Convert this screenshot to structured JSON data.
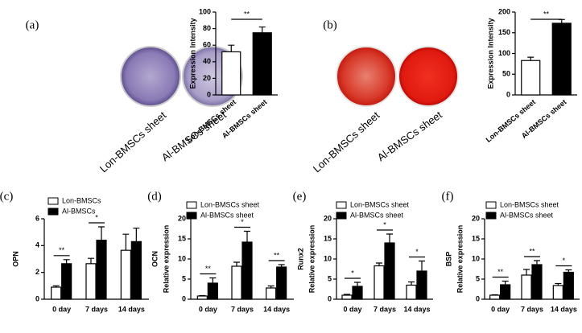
{
  "chart_data": [
    {
      "type": "bar",
      "panel": "(a)",
      "photo_labels": [
        "Lon-BMSCs sheet",
        "Al-BMSCs sheet"
      ],
      "ylabel": "Expression Intensity",
      "categories": [
        "Lon-BMSCs sheet",
        "Al-BMSCs sheet"
      ],
      "values": [
        52,
        75
      ],
      "errors": [
        8,
        7
      ],
      "colors": [
        "#ffffff",
        "#000000"
      ],
      "ylim": [
        0,
        100
      ],
      "yticks": [
        0,
        20,
        40,
        60,
        80,
        100
      ],
      "significance": [
        "**"
      ]
    },
    {
      "type": "bar",
      "panel": "(b)",
      "photo_labels": [
        "Lon-BMSCs sheet",
        "Al-BMSCs sheet"
      ],
      "ylabel": "Expression Intensity",
      "categories": [
        "Lon-BMSCs sheet",
        "Al-BMSCs sheet"
      ],
      "values": [
        83,
        173
      ],
      "errors": [
        8,
        9
      ],
      "colors": [
        "#ffffff",
        "#000000"
      ],
      "ylim": [
        0,
        200
      ],
      "yticks": [
        0,
        50,
        100,
        150,
        200
      ],
      "significance": [
        "**"
      ]
    },
    {
      "type": "grouped-bar",
      "panel": "(c)",
      "ylabel": "OPN",
      "categories": [
        "0 day",
        "7 days",
        "14 days"
      ],
      "series": [
        {
          "name": "Lon-BMSCs",
          "color": "#ffffff",
          "values": [
            0.9,
            2.65,
            3.65
          ],
          "errors": [
            0.1,
            0.4,
            1.2
          ]
        },
        {
          "name": "Al-BMSCs",
          "color": "#000000",
          "values": [
            2.65,
            4.4,
            4.3
          ],
          "errors": [
            0.3,
            1.0,
            1.0
          ]
        }
      ],
      "ylim": [
        0,
        6
      ],
      "yticks": [
        0,
        2,
        4,
        6
      ],
      "significance": [
        "**",
        "*",
        null
      ]
    },
    {
      "type": "grouped-bar",
      "panel": "(d)",
      "ylabel": "OCN",
      "ylabel_sub": "Relative expression",
      "categories": [
        "0 day",
        "7 days",
        "14 days"
      ],
      "series": [
        {
          "name": "Lon-BMSCs sheet",
          "color": "#ffffff",
          "values": [
            0.8,
            8.2,
            2.8
          ],
          "errors": [
            0.1,
            1.0,
            0.5
          ]
        },
        {
          "name": "Al-BMSCs sheet",
          "color": "#000000",
          "values": [
            4,
            14.2,
            8
          ],
          "errors": [
            1.3,
            2.7,
            0.6
          ]
        }
      ],
      "ylim": [
        0,
        20
      ],
      "yticks": [
        0,
        5,
        10,
        15,
        20
      ],
      "significance": [
        "**",
        "*",
        "**"
      ]
    },
    {
      "type": "grouped-bar",
      "panel": "(e)",
      "ylabel": "Runx2",
      "ylabel_sub": "Relative expression",
      "categories": [
        "0 day",
        "7 days",
        "14 days"
      ],
      "series": [
        {
          "name": "Lon-BMSCs sheet",
          "color": "#ffffff",
          "values": [
            1,
            8.3,
            3.5
          ],
          "errors": [
            0.2,
            0.7,
            0.8
          ]
        },
        {
          "name": "Al-BMSCs sheet",
          "color": "#000000",
          "values": [
            3.2,
            14,
            7
          ],
          "errors": [
            1,
            2.2,
            2.5
          ]
        }
      ],
      "ylim": [
        0,
        20
      ],
      "yticks": [
        0,
        5,
        10,
        15,
        20
      ],
      "significance": [
        "*",
        "*",
        "*"
      ]
    },
    {
      "type": "grouped-bar",
      "panel": "(f)",
      "ylabel": "BSP",
      "ylabel_sub": "Relative expression",
      "categories": [
        "0 day",
        "7 days",
        "14 days"
      ],
      "series": [
        {
          "name": "Lon-BMSCs sheet",
          "color": "#ffffff",
          "values": [
            1,
            6,
            3.4
          ],
          "errors": [
            0.1,
            1.4,
            0.5
          ]
        },
        {
          "name": "Al-BMSCs sheet",
          "color": "#000000",
          "values": [
            3.6,
            8.6,
            6.7
          ],
          "errors": [
            0.9,
            1,
            0.6
          ]
        }
      ],
      "ylim": [
        0,
        20
      ],
      "yticks": [
        0,
        5,
        10,
        15,
        20
      ],
      "significance": [
        "**",
        "**",
        "*"
      ]
    }
  ]
}
